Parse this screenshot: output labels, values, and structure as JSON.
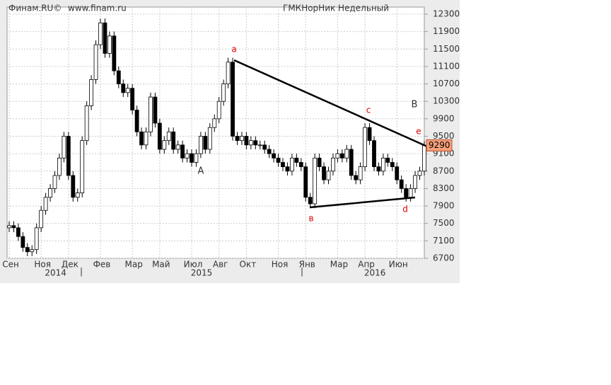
{
  "chart_data": {
    "type": "candlestick",
    "header": [
      "Финам.RU©",
      "www.finam.ru",
      "ГМКНорНик Недельный"
    ],
    "ylim": [
      6700,
      12300
    ],
    "yticks": [
      6700,
      7100,
      7500,
      7900,
      8300,
      8700,
      9100,
      9500,
      9900,
      10300,
      10700,
      11100,
      11500,
      11900,
      12300
    ],
    "xlim": [
      0,
      91
    ],
    "xticks": [
      {
        "value": 0,
        "label": "Сен"
      },
      {
        "value": 7,
        "label": "Ноя"
      },
      {
        "value": 13,
        "label": "Дек"
      },
      {
        "value": 20,
        "label": "Фев"
      },
      {
        "value": 27,
        "label": "Мар"
      },
      {
        "value": 33,
        "label": "Май"
      },
      {
        "value": 40,
        "label": "Июл"
      },
      {
        "value": 46,
        "label": "Авг"
      },
      {
        "value": 52,
        "label": "Окт"
      },
      {
        "value": 59,
        "label": "Ноя"
      },
      {
        "value": 65,
        "label": "Янв"
      },
      {
        "value": 72,
        "label": "Мар"
      },
      {
        "value": 78,
        "label": "Апр"
      },
      {
        "value": 85,
        "label": "Июн"
      }
    ],
    "year_ticks": [
      {
        "value": 8,
        "label": "2014"
      },
      {
        "value": 40,
        "label": "2015"
      },
      {
        "value": 78,
        "label": "2016"
      }
    ],
    "grid": true,
    "up_color": "#ffffff",
    "down_color": "#000000",
    "candles": [
      [
        7400,
        7550,
        7300,
        7450
      ],
      [
        7450,
        7550,
        7300,
        7400
      ],
      [
        7400,
        7500,
        7100,
        7200
      ],
      [
        7200,
        7300,
        6850,
        6950
      ],
      [
        6950,
        7050,
        6750,
        6850
      ],
      [
        6850,
        7000,
        6750,
        6900
      ],
      [
        6900,
        7500,
        6800,
        7400
      ],
      [
        7400,
        7900,
        7300,
        7800
      ],
      [
        7800,
        8200,
        7700,
        8100
      ],
      [
        8100,
        8400,
        8000,
        8300
      ],
      [
        8300,
        8700,
        8200,
        8600
      ],
      [
        8600,
        9100,
        8500,
        9000
      ],
      [
        9000,
        9600,
        8900,
        9500
      ],
      [
        9500,
        9600,
        8500,
        8600
      ],
      [
        8600,
        8700,
        8000,
        8100
      ],
      [
        8100,
        8300,
        8000,
        8200
      ],
      [
        8200,
        9500,
        8100,
        9400
      ],
      [
        9400,
        10300,
        9300,
        10200
      ],
      [
        10200,
        10900,
        10100,
        10800
      ],
      [
        10800,
        11700,
        10700,
        11600
      ],
      [
        11600,
        12200,
        11500,
        12100
      ],
      [
        12100,
        12200,
        11300,
        11400
      ],
      [
        11400,
        11900,
        11300,
        11800
      ],
      [
        11800,
        11900,
        10900,
        11000
      ],
      [
        11000,
        11100,
        10600,
        10700
      ],
      [
        10700,
        10800,
        10400,
        10500
      ],
      [
        10500,
        10700,
        10400,
        10600
      ],
      [
        10600,
        10700,
        10000,
        10100
      ],
      [
        10100,
        10200,
        9500,
        9600
      ],
      [
        9600,
        9700,
        9200,
        9300
      ],
      [
        9300,
        9700,
        9200,
        9600
      ],
      [
        9600,
        10500,
        9500,
        10400
      ],
      [
        10400,
        10500,
        9700,
        9800
      ],
      [
        9800,
        9900,
        9100,
        9200
      ],
      [
        9200,
        9500,
        9100,
        9400
      ],
      [
        9400,
        9700,
        9300,
        9600
      ],
      [
        9600,
        9700,
        9100,
        9200
      ],
      [
        9200,
        9400,
        9100,
        9300
      ],
      [
        9300,
        9400,
        8900,
        9000
      ],
      [
        9000,
        9200,
        8900,
        9100
      ],
      [
        9100,
        9200,
        8800,
        8900
      ],
      [
        8900,
        9200,
        8800,
        9100
      ],
      [
        9100,
        9600,
        9000,
        9500
      ],
      [
        9500,
        9600,
        9100,
        9200
      ],
      [
        9200,
        9800,
        9100,
        9700
      ],
      [
        9700,
        10000,
        9600,
        9900
      ],
      [
        9900,
        10400,
        9800,
        10300
      ],
      [
        10300,
        10800,
        10200,
        10700
      ],
      [
        10700,
        11300,
        10600,
        11200
      ],
      [
        11200,
        11300,
        9400,
        9500
      ],
      [
        9500,
        9600,
        9300,
        9400
      ],
      [
        9400,
        9600,
        9300,
        9500
      ],
      [
        9500,
        9600,
        9200,
        9300
      ],
      [
        9300,
        9500,
        9200,
        9400
      ],
      [
        9400,
        9500,
        9200,
        9300
      ],
      [
        9300,
        9400,
        9200,
        9300
      ],
      [
        9300,
        9400,
        9100,
        9200
      ],
      [
        9200,
        9300,
        9000,
        9100
      ],
      [
        9100,
        9200,
        8900,
        9000
      ],
      [
        9000,
        9100,
        8800,
        8900
      ],
      [
        8900,
        9000,
        8700,
        8800
      ],
      [
        8800,
        8900,
        8600,
        8700
      ],
      [
        8700,
        9100,
        8600,
        9000
      ],
      [
        9000,
        9100,
        8800,
        8900
      ],
      [
        8900,
        9000,
        8700,
        8800
      ],
      [
        8800,
        8900,
        8000,
        8100
      ],
      [
        8100,
        8200,
        7850,
        7950
      ],
      [
        7950,
        9100,
        7850,
        9000
      ],
      [
        9000,
        9100,
        8700,
        8800
      ],
      [
        8800,
        8900,
        8400,
        8500
      ],
      [
        8500,
        8800,
        8400,
        8700
      ],
      [
        8700,
        9100,
        8600,
        9000
      ],
      [
        9000,
        9200,
        8900,
        9100
      ],
      [
        9100,
        9200,
        8900,
        9000
      ],
      [
        9000,
        9300,
        8900,
        9200
      ],
      [
        9200,
        9300,
        8500,
        8600
      ],
      [
        8600,
        8700,
        8400,
        8500
      ],
      [
        8500,
        8900,
        8400,
        8800
      ],
      [
        8800,
        9800,
        8700,
        9700
      ],
      [
        9700,
        9800,
        9300,
        9400
      ],
      [
        9400,
        9500,
        8700,
        8800
      ],
      [
        8800,
        8900,
        8600,
        8700
      ],
      [
        8700,
        9100,
        8600,
        9000
      ],
      [
        9000,
        9100,
        8800,
        8900
      ],
      [
        8900,
        9000,
        8700,
        8800
      ],
      [
        8800,
        8900,
        8400,
        8500
      ],
      [
        8500,
        8600,
        8200,
        8300
      ],
      [
        8300,
        8400,
        8000,
        8100
      ],
      [
        8100,
        8400,
        8000,
        8300
      ],
      [
        8300,
        8700,
        8200,
        8600
      ],
      [
        8600,
        8800,
        8500,
        8700
      ],
      [
        8700,
        9390,
        8600,
        9290
      ]
    ],
    "annotations": [
      "a",
      "c",
      "e",
      "d",
      "в",
      "A",
      "B"
    ]
  }
}
